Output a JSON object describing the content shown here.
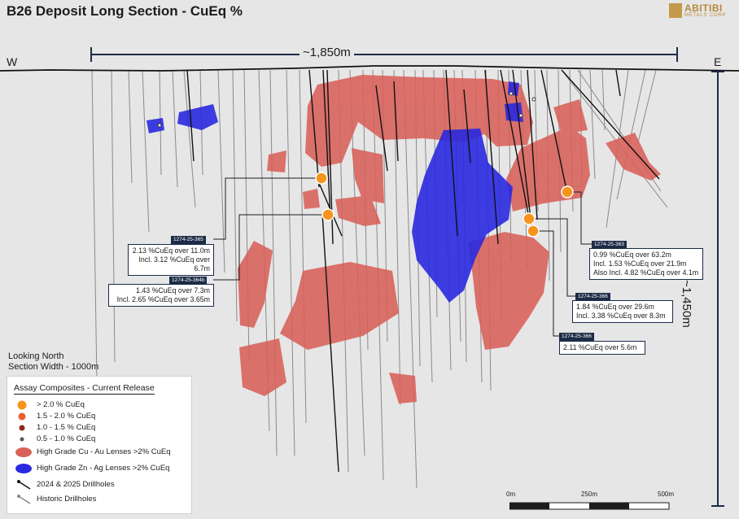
{
  "title": "B26 Deposit Long Section - CuEq %",
  "logo": {
    "name": "ABITIBI",
    "subtitle": "METALS CORP"
  },
  "directions": {
    "west": "W",
    "east": "E"
  },
  "dimensions": {
    "width": "~1,850m",
    "depth": "~1,450m"
  },
  "view_note": {
    "line1": "Looking North",
    "line2": "Section Width - 1000m"
  },
  "colors": {
    "cu_au_lens": "#d9605a",
    "zn_ag_lens": "#2929e0",
    "intercept": "#f7941d",
    "label_bg": "#1c2b47",
    "background": "#e6e6e6"
  },
  "callouts": [
    {
      "hole": "1274-25-365",
      "line1": "2.13 %CuEq over 11.0m",
      "line2": "Incl. 3.12 %CuEq over 6.7m",
      "line3": ""
    },
    {
      "hole": "1274-25-364b",
      "line1": "1.43 %CuEq over 7.3m",
      "line2": "Incl. 2.65 %CuEq over 3.65m",
      "line3": ""
    },
    {
      "hole": "1274-25-363",
      "line1": "0.99 %CuEq over 63.2m",
      "line2": "Incl. 1.53 %CuEq over 21.9m",
      "line3": "Also Incl. 4.82 %CuEq over 4.1m"
    },
    {
      "hole": "1274-25-366",
      "line1": "1.84 %CuEq over 29.6m",
      "line2": "Incl. 3.38 %CuEq over 8.3m",
      "line3": ""
    },
    {
      "hole": "1274-25-366",
      "line1": "2.11 %CuEq over 5.6m",
      "line2": "",
      "line3": ""
    }
  ],
  "legend": {
    "title": "Assay Composites - Current Release",
    "items": [
      {
        "label": "> 2.0 % CuEq",
        "symbol": "dot-large-orange-icon"
      },
      {
        "label": "1.5 - 2.0 % CuEq",
        "symbol": "dot-orange-red-icon"
      },
      {
        "label": "1.0 - 1.5 % CuEq",
        "symbol": "dot-red-brown-icon"
      },
      {
        "label": "0.5 - 1.0 % CuEq",
        "symbol": "dot-grey-icon"
      },
      {
        "label": "High Grade Cu - Au Lenses >2% CuEq",
        "symbol": "red-lens-icon"
      },
      {
        "label": "High Grade Zn - Ag Lenses >2% CuEq",
        "symbol": "blue-lens-icon"
      },
      {
        "label": "2024 & 2025 Drillholes",
        "symbol": "black-drillhole-icon"
      },
      {
        "label": "Historic Drillholes",
        "symbol": "grey-drillhole-icon"
      }
    ]
  },
  "scale_bar": {
    "labels": [
      "0m",
      "250m",
      "500m"
    ]
  }
}
